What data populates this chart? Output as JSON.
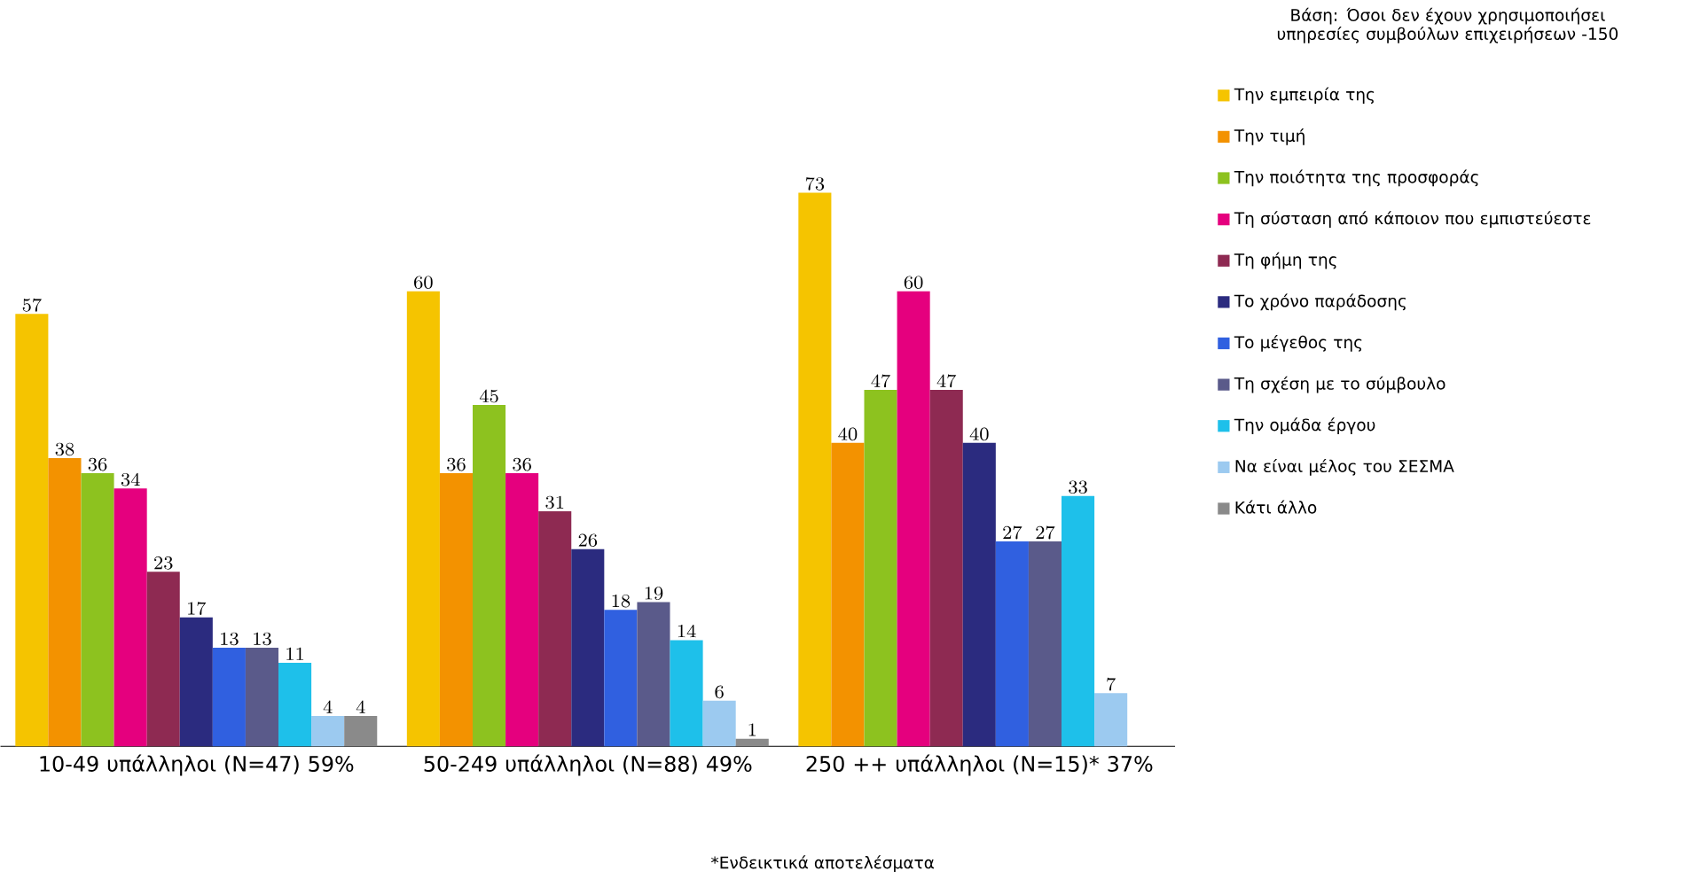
{
  "chart_data": {
    "type": "bar",
    "title": "Βάση: Όσοι δεν έχουν χρησιμοποιήσει υπηρεσίες συμβούλων επιχειρήσεων -150",
    "categories": [
      "10-49 υπάλληλοι (Ν=47) 59%",
      "50-249 υπάλληλοι (Ν=88) 49%",
      "250 ++ υπάλληλοι (Ν=15)* 37%"
    ],
    "series": [
      {
        "name": "Την εμπειρία της",
        "color": "#f5c400",
        "values": [
          57,
          60,
          73
        ]
      },
      {
        "name": "Την τιμή",
        "color": "#f39200",
        "values": [
          38,
          36,
          40
        ]
      },
      {
        "name": "Την ποιότητα της προσφοράς",
        "color": "#8dc21f",
        "values": [
          36,
          45,
          47
        ]
      },
      {
        "name": "Τη σύσταση από κάποιον που εμπιστεύεστε",
        "color": "#e5007e",
        "values": [
          34,
          36,
          60
        ]
      },
      {
        "name": "Τη φήμη της",
        "color": "#8e2a52",
        "values": [
          23,
          31,
          47
        ]
      },
      {
        "name": "Το χρόνο παράδοσης",
        "color": "#2b2b7f",
        "values": [
          17,
          26,
          40
        ]
      },
      {
        "name": "Το μέγεθος της",
        "color": "#3060e0",
        "values": [
          13,
          18,
          27
        ]
      },
      {
        "name": "Τη σχέση με το σύμβουλο",
        "color": "#5a5a8a",
        "values": [
          13,
          19,
          27
        ]
      },
      {
        "name": "Την ομάδα έργου",
        "color": "#1ec0ea",
        "values": [
          11,
          14,
          33
        ]
      },
      {
        "name": "Να είναι μέλος του ΣΕΣΜΑ",
        "color": "#9ccaf0",
        "values": [
          4,
          6,
          7
        ]
      },
      {
        "name": "Κάτι άλλο",
        "color": "#8a8a8a",
        "values": [
          4,
          1,
          null
        ]
      }
    ],
    "data_labels": true,
    "legend": "right",
    "annotations": [
      "*Ενδεικτικά αποτελέσματα"
    ]
  }
}
